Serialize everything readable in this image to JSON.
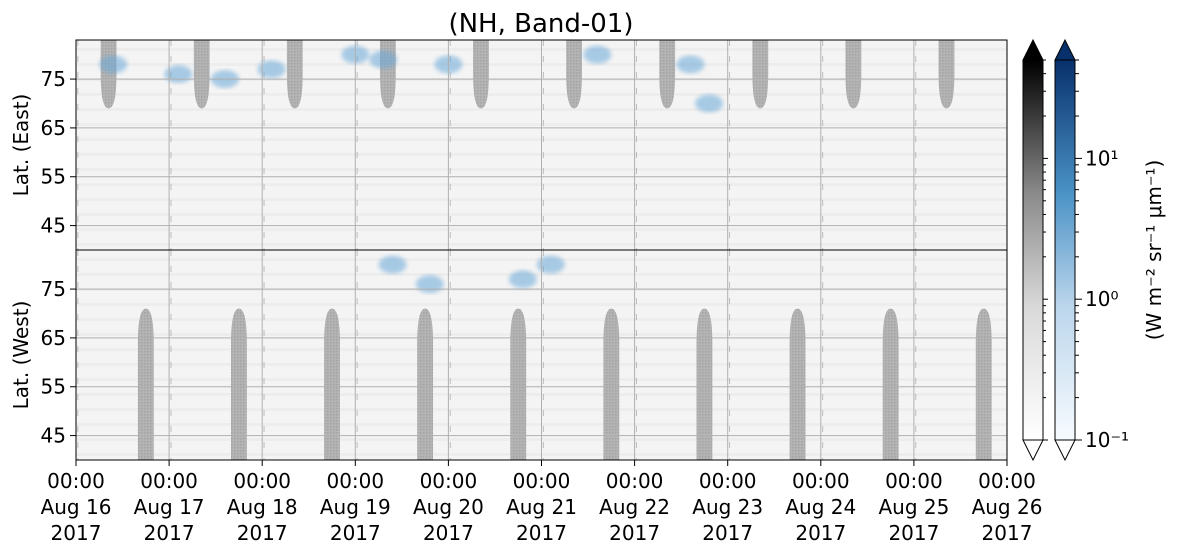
{
  "chart_data": {
    "type": "heatmap",
    "title": "(NH, Band-01)",
    "grid": true,
    "x": {
      "range": [
        "2017-08-16 00:00",
        "2017-08-26 00:00"
      ],
      "ticks": [
        {
          "time": "00:00",
          "date": "Aug 16",
          "year": "2017"
        },
        {
          "time": "00:00",
          "date": "Aug 17",
          "year": "2017"
        },
        {
          "time": "00:00",
          "date": "Aug 18",
          "year": "2017"
        },
        {
          "time": "00:00",
          "date": "Aug 19",
          "year": "2017"
        },
        {
          "time": "00:00",
          "date": "Aug 20",
          "year": "2017"
        },
        {
          "time": "00:00",
          "date": "Aug 21",
          "year": "2017"
        },
        {
          "time": "00:00",
          "date": "Aug 22",
          "year": "2017"
        },
        {
          "time": "00:00",
          "date": "Aug 23",
          "year": "2017"
        },
        {
          "time": "00:00",
          "date": "Aug 24",
          "year": "2017"
        },
        {
          "time": "00:00",
          "date": "Aug 25",
          "year": "2017"
        },
        {
          "time": "00:00",
          "date": "Aug 26",
          "year": "2017"
        }
      ]
    },
    "panels": [
      {
        "name": "east",
        "ylabel": "Lat. (East)",
        "ylim": [
          40,
          83
        ],
        "yticks": [
          "45",
          "55",
          "65",
          "75"
        ]
      },
      {
        "name": "west",
        "ylabel": "Lat. (West)",
        "ylim": [
          40,
          83
        ],
        "inverted": true,
        "yticks": [
          "75",
          "65",
          "55",
          "45"
        ]
      }
    ],
    "colorbar": {
      "label": "(W m⁻² sr⁻¹ μm⁻¹)",
      "scale": "log",
      "range": [
        0.1,
        50
      ],
      "ticks": [
        {
          "value": 0.1,
          "label": "10⁻¹"
        },
        {
          "value": 1,
          "label": "10⁰"
        },
        {
          "value": 10,
          "label": "10¹"
        }
      ],
      "cmaps": [
        "Greys",
        "Blues"
      ],
      "extend": "both"
    },
    "features": {
      "east_dark_lobes_center_day": [
        0.35,
        1.35,
        2.35,
        3.35,
        4.35,
        5.35,
        6.35,
        7.35,
        8.35,
        9.35
      ],
      "west_dark_lobes_center_day": [
        0.75,
        1.75,
        2.75,
        3.75,
        4.75,
        5.75,
        6.75,
        7.75,
        8.75,
        9.75
      ],
      "blue_patches": [
        {
          "day": 0.4,
          "lat": 78,
          "panel": "east"
        },
        {
          "day": 1.1,
          "lat": 76,
          "panel": "east"
        },
        {
          "day": 1.6,
          "lat": 75,
          "panel": "east"
        },
        {
          "day": 2.1,
          "lat": 77,
          "panel": "east"
        },
        {
          "day": 3.0,
          "lat": 80,
          "panel": "east"
        },
        {
          "day": 3.3,
          "lat": 79,
          "panel": "east"
        },
        {
          "day": 4.0,
          "lat": 78,
          "panel": "east"
        },
        {
          "day": 5.6,
          "lat": 80,
          "panel": "east"
        },
        {
          "day": 6.6,
          "lat": 78,
          "panel": "east"
        },
        {
          "day": 6.8,
          "lat": 70,
          "panel": "east"
        },
        {
          "day": 3.4,
          "lat": 80,
          "panel": "west"
        },
        {
          "day": 5.1,
          "lat": 80,
          "panel": "west"
        },
        {
          "day": 4.8,
          "lat": 77,
          "panel": "west"
        },
        {
          "day": 3.8,
          "lat": 76,
          "panel": "west"
        }
      ]
    }
  }
}
